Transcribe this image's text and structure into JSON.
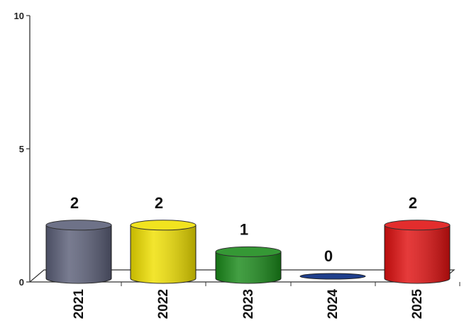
{
  "chart_data": {
    "type": "bar",
    "categories": [
      "2021",
      "2022",
      "2023",
      "2024",
      "2025"
    ],
    "values": [
      2,
      2,
      1,
      0,
      2
    ],
    "data_labels": [
      "2",
      "2",
      "1",
      "0",
      "2"
    ],
    "colors": [
      "#5b5f78",
      "#f0e000",
      "#1a8a1a",
      "#1f3f8c",
      "#e01010"
    ],
    "ylim": [
      0,
      10
    ],
    "yticks": [
      "0",
      "5",
      "10"
    ],
    "style": "3d-cylinder",
    "grid": false,
    "title": "",
    "xlabel": "",
    "ylabel": ""
  }
}
